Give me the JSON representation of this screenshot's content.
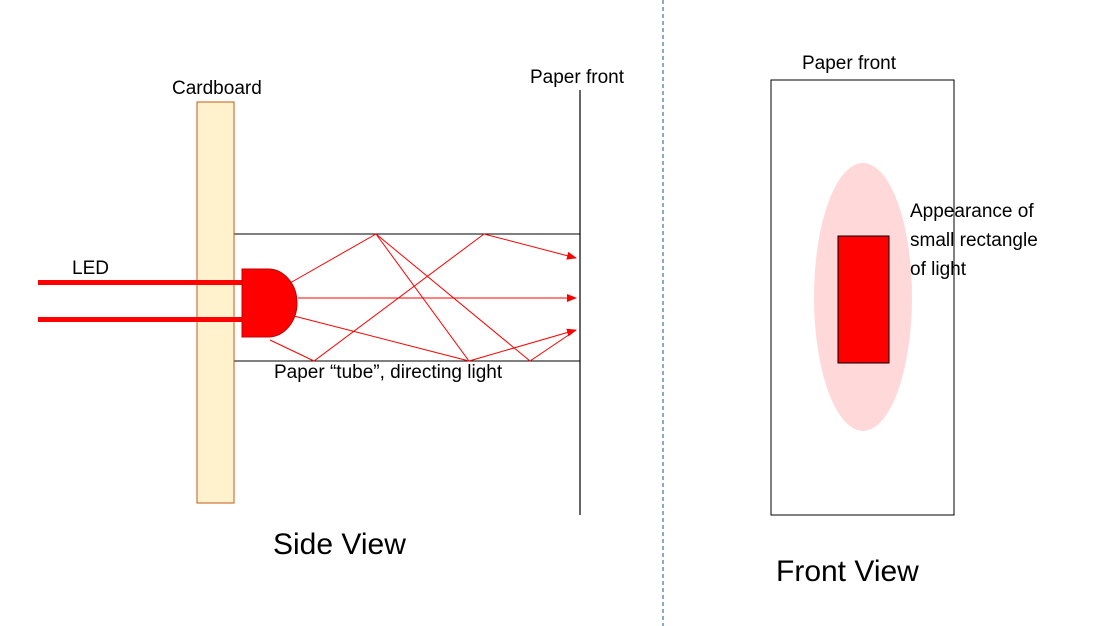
{
  "labels": {
    "cardboard": "Cardboard",
    "led": "LED",
    "paper_front_side": "Paper front",
    "paper_front_front": "Paper front",
    "tube": "Paper “tube”, directing light",
    "appearance_line1": "Appearance of",
    "appearance_line2": "small rectangle",
    "appearance_line3": "of light",
    "side_view": "Side View",
    "front_view": "Front View"
  },
  "colors": {
    "cardboard_fill": "#FFF2CC",
    "cardboard_stroke": "#C55A11",
    "led_red": "#FF0000",
    "light_ray": "#FF0000",
    "glow": "#FFD9D9",
    "divider": "#41719C",
    "outline": "#000000"
  }
}
